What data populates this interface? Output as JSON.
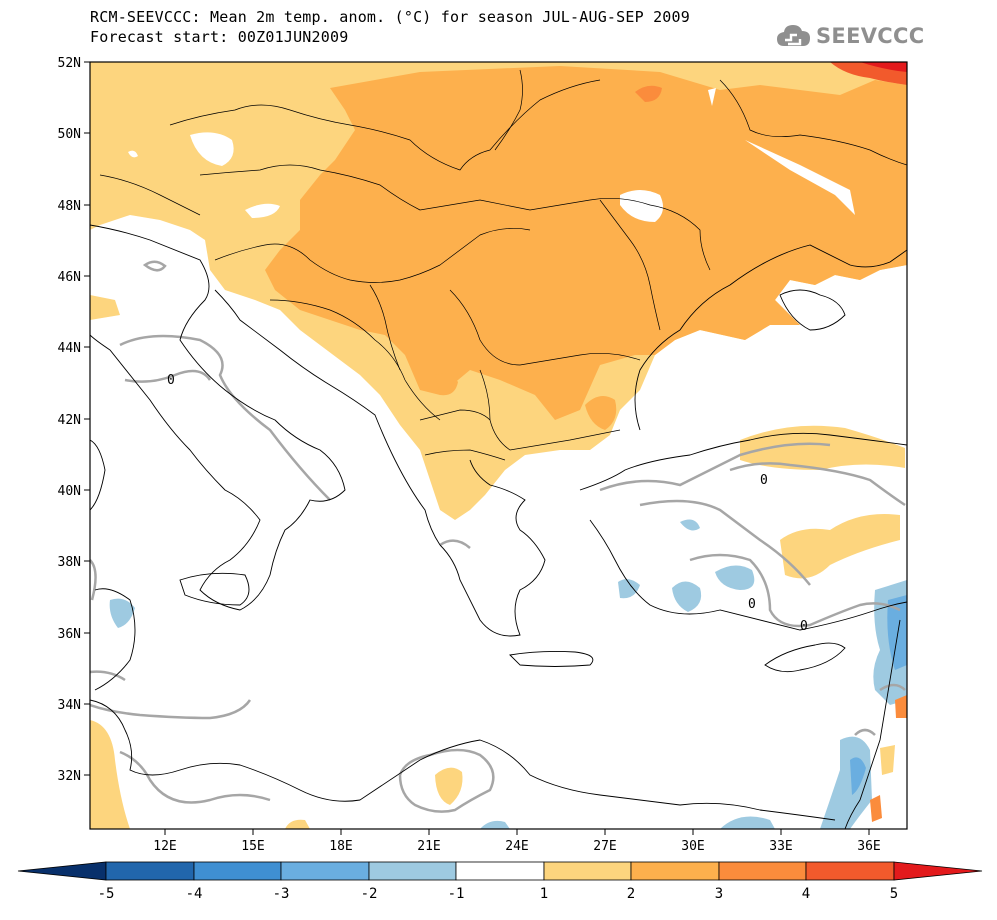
{
  "header": {
    "title_line1": "RCM-SEEVCCC: Mean 2m temp. anom. (°C) for season JUL-AUG-SEP 2009",
    "title_line2": "Forecast start: 00Z01JUN2009"
  },
  "logo": {
    "icon": "cloud-icon",
    "text": "SEEVCCC"
  },
  "map": {
    "lat_labels": [
      "52N",
      "50N",
      "48N",
      "46N",
      "44N",
      "42N",
      "40N",
      "38N",
      "36N",
      "34N",
      "32N"
    ],
    "lon_labels": [
      "12E",
      "15E",
      "18E",
      "21E",
      "24E",
      "27E",
      "30E",
      "33E",
      "36E"
    ],
    "contour_label": "0"
  },
  "colorbar": {
    "ticks": [
      "-5",
      "-4",
      "-3",
      "-2",
      "-1",
      "1",
      "2",
      "3",
      "4",
      "5"
    ],
    "colors": {
      "below_-5": "#08306b",
      "-5_-4": "#2166ac",
      "-4_-3": "#3f8fd2",
      "-3_-2": "#6aaee0",
      "-2_-1": "#9ecae1",
      "-1_1": "#ffffff",
      "1_2": "#fdd57e",
      "2_3": "#fdb04d",
      "3_4": "#fb8c3c",
      "4_5": "#f25a2c",
      "above_5": "#e31a1c"
    }
  }
}
